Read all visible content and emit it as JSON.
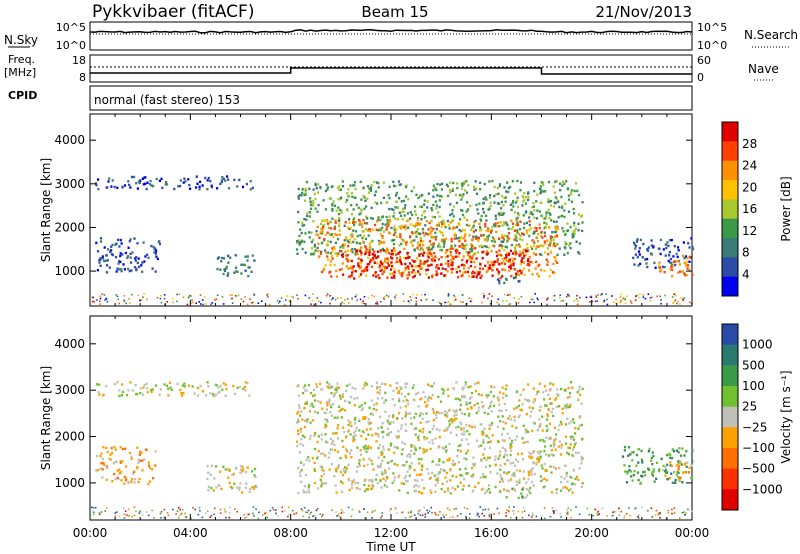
{
  "header": {
    "title": "Pykkvibaer (fitACF)",
    "beam": "Beam 15",
    "date": "21/Nov/2013"
  },
  "nsky_panel": {
    "left_label": "N.Sky",
    "right_label": "N.Search",
    "left_ticks": [
      "10^5",
      "10^0"
    ],
    "right_ticks": [
      "10^5",
      "10^0"
    ]
  },
  "freq_panel": {
    "left_label_1": "Freq.",
    "left_label_2": "[MHz]",
    "right_label": "Nave",
    "left_ticks": [
      "18",
      "8"
    ],
    "right_ticks": [
      "60",
      "0"
    ],
    "cpid_label": "CPID"
  },
  "cpid_text": "normal (fast stereo) 153",
  "chart_data": [
    {
      "type": "heatmap",
      "ylabel": "Slant Range [km]",
      "yticks": [
        "4000",
        "3000",
        "2000",
        "1000"
      ],
      "colorbar_label": "Power [dB]",
      "colorbar_ticks": [
        "28",
        "24",
        "20",
        "16",
        "12",
        "8",
        "4"
      ],
      "colorbar_colors": [
        "#e00000",
        "#ff4000",
        "#ff9000",
        "#ffc000",
        "#a8c830",
        "#3a9a48",
        "#3a7a78",
        "#2c4ca8",
        "#0000f0"
      ],
      "regions": [
        {
          "t0": 0.2,
          "t1": 2.8,
          "r0": 1000,
          "r1": 1800,
          "level": 7
        },
        {
          "t0": 0.2,
          "t1": 6.5,
          "r0": 2900,
          "r1": 3200,
          "level": 7
        },
        {
          "t0": 5.0,
          "t1": 6.6,
          "r0": 900,
          "r1": 1400,
          "level": 6
        },
        {
          "t0": 8.2,
          "t1": 19.6,
          "r0": 1400,
          "r1": 3100,
          "level": 5
        },
        {
          "t0": 9.0,
          "t1": 18.6,
          "r0": 900,
          "r1": 2200,
          "level": 2
        },
        {
          "t0": 10.0,
          "t1": 17.5,
          "r0": 850,
          "r1": 1500,
          "level": 0
        },
        {
          "t0": 21.6,
          "t1": 24.0,
          "r0": 1100,
          "r1": 1800,
          "level": 7
        },
        {
          "t0": 22.6,
          "t1": 24.0,
          "r0": 900,
          "r1": 1400,
          "level": 2
        },
        {
          "t0": 16.2,
          "t1": 17.4,
          "r0": 750,
          "r1": 950,
          "level": 6
        }
      ]
    },
    {
      "type": "heatmap",
      "ylabel": "Slant Range [km]",
      "yticks": [
        "4000",
        "3000",
        "2000",
        "1000"
      ],
      "xticks": [
        "00:00",
        "04:00",
        "08:00",
        "12:00",
        "16:00",
        "20:00",
        "00:00"
      ],
      "xlabel": "Time UT",
      "colorbar_label": "Velocity [m s⁻¹]",
      "colorbar_ticks": [
        "1000",
        "500",
        "100",
        "25",
        "−25",
        "−100",
        "−500",
        "−1000"
      ],
      "colorbar_colors": [
        "#2a4aa8",
        "#2a7a70",
        "#3a9a48",
        "#70c030",
        "#c0c0b8",
        "#ffa000",
        "#ff7000",
        "#ff3000",
        "#e00000"
      ],
      "regions": [
        {
          "t0": 0.2,
          "t1": 6.5,
          "r0": 2900,
          "r1": 3200,
          "level": 4
        },
        {
          "t0": 0.2,
          "t1": 2.6,
          "r0": 1000,
          "r1": 1800,
          "level": 5
        },
        {
          "t0": 4.6,
          "t1": 6.6,
          "r0": 800,
          "r1": 1400,
          "level": 4
        },
        {
          "t0": 8.2,
          "t1": 19.6,
          "r0": 800,
          "r1": 3200,
          "level": 4
        },
        {
          "t0": 16.2,
          "t1": 17.4,
          "r0": 700,
          "r1": 900,
          "level": 3
        },
        {
          "t0": 21.2,
          "t1": 24.0,
          "r0": 1000,
          "r1": 1800,
          "level": 2
        },
        {
          "t0": 22.8,
          "t1": 24.0,
          "r0": 1100,
          "r1": 1500,
          "level": 5
        }
      ]
    }
  ]
}
